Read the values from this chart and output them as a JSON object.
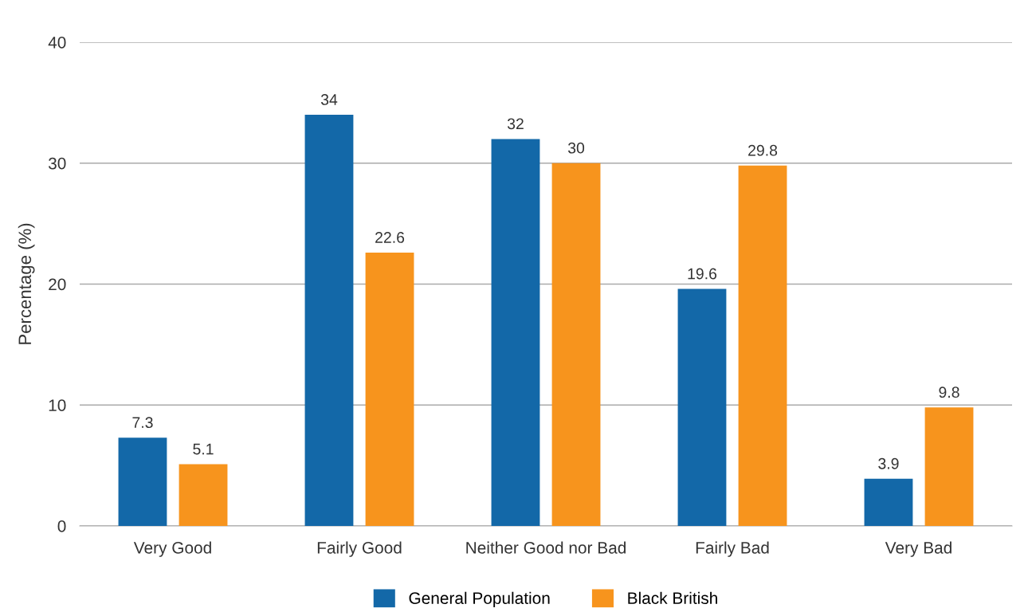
{
  "chart_data": {
    "type": "bar",
    "ylabel": "Percentage (%)",
    "categories": [
      "Very Good",
      "Fairly Good",
      "Neither Good nor Bad",
      "Fairly Bad",
      "Very Bad"
    ],
    "series": [
      {
        "name": "General Population",
        "color": "#1368a8",
        "values": [
          7.3,
          34,
          32,
          19.6,
          3.9
        ]
      },
      {
        "name": "Black British",
        "color": "#f7941d",
        "values": [
          5.1,
          22.6,
          30,
          29.8,
          9.8
        ]
      }
    ],
    "ylim": [
      0,
      40
    ],
    "yticks": [
      0,
      10,
      20,
      30,
      40
    ],
    "grid": "y",
    "legend": "bottom",
    "data_labels": true
  }
}
